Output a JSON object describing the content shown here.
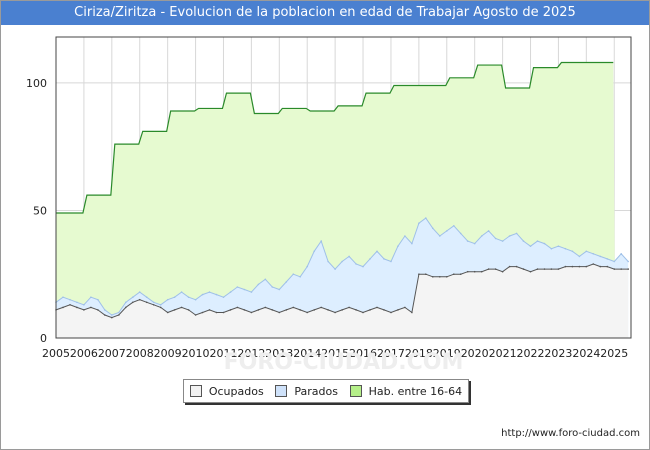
{
  "title": "Ciriza/Ziritza - Evolucion de la poblacion en edad de Trabajar Agosto de 2025",
  "source": "http://www.foro-ciudad.com",
  "watermark": "FORO-CIUDAD.COM",
  "colors": {
    "title_bg": "#4a80d0",
    "hab_fill": "#e6fad0",
    "hab_line": "#2a8a2a",
    "parados_fill": "#ddeeff",
    "parados_line": "#9fc0e8",
    "ocupados_fill": "#f4f4f4",
    "ocupados_line": "#555555",
    "grid": "#d8d8d8"
  },
  "legend": [
    {
      "label": "Ocupados",
      "color": "#f2f2f2"
    },
    {
      "label": "Parados",
      "color": "#cfe2fa"
    },
    {
      "label": "Hab. entre 16-64",
      "color": "#b6f08a"
    }
  ],
  "chart_data": {
    "type": "area",
    "title": "Ciriza/Ziritza - Evolucion de la poblacion en edad de Trabajar Agosto de 2025",
    "xlim": [
      2005,
      2025.6
    ],
    "ylim": [
      0,
      118
    ],
    "x_ticks": [
      "2005",
      "2006",
      "2007",
      "2008",
      "2009",
      "2010",
      "2011",
      "2012",
      "2013",
      "2014",
      "2015",
      "2016",
      "2017",
      "2018",
      "2019",
      "2020",
      "2021",
      "2022",
      "2023",
      "2024",
      "2025"
    ],
    "y_ticks": [
      0,
      50,
      100
    ],
    "grid": true,
    "legend_position": "bottom",
    "series": [
      {
        "name": "Hab. entre 16-64",
        "x": [
          2005,
          2006,
          2007,
          2008,
          2009,
          2010,
          2011,
          2012,
          2013,
          2014,
          2015,
          2016,
          2017,
          2018,
          2019,
          2020,
          2021,
          2022,
          2023,
          2024
        ],
        "values": [
          49,
          56,
          76,
          81,
          89,
          90,
          96,
          88,
          90,
          89,
          91,
          96,
          99,
          99,
          102,
          107,
          98,
          106,
          108,
          108
        ]
      },
      {
        "name": "Parados",
        "x": [
          2005.0,
          2005.25,
          2005.5,
          2005.75,
          2006.0,
          2006.25,
          2006.5,
          2006.75,
          2007.0,
          2007.25,
          2007.5,
          2007.75,
          2008.0,
          2008.25,
          2008.5,
          2008.75,
          2009.0,
          2009.25,
          2009.5,
          2009.75,
          2010.0,
          2010.25,
          2010.5,
          2010.75,
          2011.0,
          2011.25,
          2011.5,
          2011.75,
          2012.0,
          2012.25,
          2012.5,
          2012.75,
          2013.0,
          2013.25,
          2013.5,
          2013.75,
          2014.0,
          2014.25,
          2014.5,
          2014.75,
          2015.0,
          2015.25,
          2015.5,
          2015.75,
          2016.0,
          2016.25,
          2016.5,
          2016.75,
          2017.0,
          2017.25,
          2017.5,
          2017.75,
          2018.0,
          2018.25,
          2018.5,
          2018.75,
          2019.0,
          2019.25,
          2019.5,
          2019.75,
          2020.0,
          2020.25,
          2020.5,
          2020.75,
          2021.0,
          2021.25,
          2021.5,
          2021.75,
          2022.0,
          2022.25,
          2022.5,
          2022.75,
          2023.0,
          2023.25,
          2023.5,
          2023.75,
          2024.0,
          2024.25,
          2024.5,
          2024.75,
          2025.0,
          2025.25,
          2025.5
        ],
        "values": [
          14,
          16,
          15,
          14,
          13,
          16,
          15,
          11,
          9,
          10,
          14,
          16,
          18,
          16,
          14,
          13,
          15,
          16,
          18,
          16,
          15,
          17,
          18,
          17,
          16,
          18,
          20,
          19,
          18,
          21,
          23,
          20,
          19,
          22,
          25,
          24,
          28,
          34,
          38,
          30,
          27,
          30,
          32,
          29,
          28,
          31,
          34,
          31,
          30,
          36,
          40,
          37,
          45,
          47,
          43,
          40,
          42,
          44,
          41,
          38,
          37,
          40,
          42,
          39,
          38,
          40,
          41,
          38,
          36,
          38,
          37,
          35,
          36,
          35,
          34,
          32,
          34,
          33,
          32,
          31,
          30,
          33,
          30
        ]
      },
      {
        "name": "Ocupados",
        "x": [
          2005.0,
          2005.25,
          2005.5,
          2005.75,
          2006.0,
          2006.25,
          2006.5,
          2006.75,
          2007.0,
          2007.25,
          2007.5,
          2007.75,
          2008.0,
          2008.25,
          2008.5,
          2008.75,
          2009.0,
          2009.25,
          2009.5,
          2009.75,
          2010.0,
          2010.25,
          2010.5,
          2010.75,
          2011.0,
          2011.25,
          2011.5,
          2011.75,
          2012.0,
          2012.25,
          2012.5,
          2012.75,
          2013.0,
          2013.25,
          2013.5,
          2013.75,
          2014.0,
          2014.25,
          2014.5,
          2014.75,
          2015.0,
          2015.25,
          2015.5,
          2015.75,
          2016.0,
          2016.25,
          2016.5,
          2016.75,
          2017.0,
          2017.25,
          2017.5,
          2017.75,
          2018.0,
          2018.25,
          2018.5,
          2018.75,
          2019.0,
          2019.25,
          2019.5,
          2019.75,
          2020.0,
          2020.25,
          2020.5,
          2020.75,
          2021.0,
          2021.25,
          2021.5,
          2021.75,
          2022.0,
          2022.25,
          2022.5,
          2022.75,
          2023.0,
          2023.25,
          2023.5,
          2023.75,
          2024.0,
          2024.25,
          2024.5,
          2024.75,
          2025.0,
          2025.25,
          2025.5
        ],
        "values": [
          11,
          12,
          13,
          12,
          11,
          12,
          11,
          9,
          8,
          9,
          12,
          14,
          15,
          14,
          13,
          12,
          10,
          11,
          12,
          11,
          9,
          10,
          11,
          10,
          10,
          11,
          12,
          11,
          10,
          11,
          12,
          11,
          10,
          11,
          12,
          11,
          10,
          11,
          12,
          11,
          10,
          11,
          12,
          11,
          10,
          11,
          12,
          11,
          10,
          11,
          12,
          10,
          25,
          25,
          24,
          24,
          24,
          25,
          25,
          26,
          26,
          26,
          27,
          27,
          26,
          28,
          28,
          27,
          26,
          27,
          27,
          27,
          27,
          28,
          28,
          28,
          28,
          29,
          28,
          28,
          27,
          27,
          27
        ]
      }
    ]
  }
}
